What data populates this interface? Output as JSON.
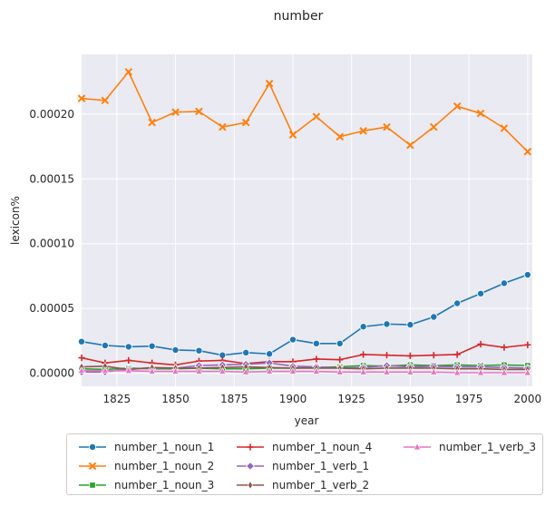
{
  "chart_data": {
    "type": "line",
    "title": "number",
    "xlabel": "year",
    "ylabel": "lexicon%",
    "xlim": [
      1810,
      2002
    ],
    "ylim": [
      -1e-05,
      0.000246
    ],
    "x_ticks": [
      1825,
      1850,
      1875,
      1900,
      1925,
      1950,
      1975,
      2000
    ],
    "x_tick_labels": [
      "1825",
      "1850",
      "1875",
      "1900",
      "1925",
      "1950",
      "1975",
      "2000"
    ],
    "y_ticks": [
      0.0,
      5e-05,
      0.0001,
      0.00015,
      0.0002
    ],
    "y_tick_labels": [
      "0.00000",
      "0.00005",
      "0.00010",
      "0.00015",
      "0.00020"
    ],
    "grid": true,
    "legend_position": "bottom",
    "x": [
      1810,
      1820,
      1830,
      1840,
      1850,
      1860,
      1870,
      1880,
      1890,
      1900,
      1910,
      1920,
      1930,
      1940,
      1950,
      1960,
      1970,
      1980,
      1990,
      2000
    ],
    "series": [
      {
        "name": "number_1_noun_1",
        "color": "#1f77b4",
        "marker": "circle",
        "values": [
          2.45e-05,
          2.15e-05,
          2.05e-05,
          2.1e-05,
          1.8e-05,
          1.75e-05,
          1.4e-05,
          1.6e-05,
          1.5e-05,
          2.6e-05,
          2.3e-05,
          2.3e-05,
          3.6e-05,
          3.8e-05,
          3.75e-05,
          4.35e-05,
          5.4e-05,
          6.15e-05,
          6.95e-05,
          7.6e-05
        ]
      },
      {
        "name": "number_1_noun_2",
        "color": "#ff7f0e",
        "marker": "x",
        "values": [
          0.000212,
          0.0002105,
          0.0002325,
          0.0001935,
          0.0002015,
          0.000202,
          0.00019,
          0.0001935,
          0.0002235,
          0.000184,
          0.000198,
          0.0001825,
          0.000187,
          0.00019,
          0.000176,
          0.00019,
          0.000206,
          0.0002005,
          0.000189,
          0.000171
        ]
      },
      {
        "name": "number_1_noun_3",
        "color": "#2ca02c",
        "marker": "square",
        "values": [
          3.5e-06,
          3e-06,
          4e-06,
          3.5e-06,
          3.5e-06,
          4e-06,
          3.5e-06,
          3.5e-06,
          4e-06,
          4e-06,
          4.5e-06,
          5e-06,
          6e-06,
          5.5e-06,
          6.5e-06,
          6e-06,
          6.5e-06,
          6e-06,
          6.5e-06,
          6e-06
        ]
      },
      {
        "name": "number_1_noun_4",
        "color": "#d62728",
        "marker": "plus",
        "values": [
          1.2e-05,
          8e-06,
          1e-05,
          8e-06,
          6.5e-06,
          9.5e-06,
          1e-05,
          7.5e-06,
          9e-06,
          9e-06,
          1.1e-05,
          1.05e-05,
          1.45e-05,
          1.4e-05,
          1.35e-05,
          1.4e-05,
          1.45e-05,
          2.25e-05,
          2e-05,
          2.2e-05
        ]
      },
      {
        "name": "number_1_verb_1",
        "color": "#9467bd",
        "marker": "diamond",
        "values": [
          1e-06,
          1e-06,
          3.5e-06,
          4e-06,
          4e-06,
          6e-06,
          6.5e-06,
          7e-06,
          8e-06,
          5.5e-06,
          5e-06,
          4e-06,
          4.5e-06,
          6e-06,
          5e-06,
          5.5e-06,
          5e-06,
          5e-06,
          4.5e-06,
          4e-06
        ]
      },
      {
        "name": "number_1_verb_2",
        "color": "#8c564b",
        "marker": "thin_diamond",
        "values": [
          5e-06,
          5.5e-06,
          3e-06,
          4.5e-06,
          4e-06,
          4e-06,
          4.5e-06,
          5e-06,
          4.5e-06,
          4e-06,
          4e-06,
          4e-06,
          3.5e-06,
          4e-06,
          4e-06,
          4e-06,
          3.5e-06,
          3.5e-06,
          3e-06,
          3e-06
        ]
      },
      {
        "name": "number_1_verb_3",
        "color": "#e377c2",
        "marker": "triangle",
        "values": [
          2e-06,
          2e-06,
          2e-06,
          1.5e-06,
          1.5e-06,
          1.5e-06,
          1.5e-06,
          1e-06,
          1.5e-06,
          1.5e-06,
          1.5e-06,
          1e-06,
          1e-06,
          1e-06,
          1e-06,
          1e-06,
          5e-07,
          5e-07,
          5e-07,
          5e-07
        ]
      }
    ]
  }
}
